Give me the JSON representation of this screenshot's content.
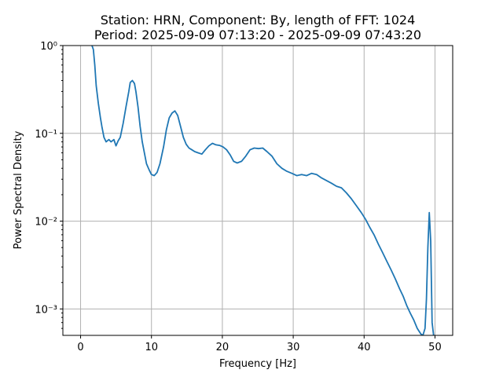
{
  "chart_data": {
    "type": "line",
    "title": "Station: HRN, Component: By, length of FFT: 1024",
    "subtitle": "Period: 2025-09-09 07:13:20 - 2025-09-09 07:43:20",
    "xlabel": "Frequency [Hz]",
    "ylabel": "Power Spectral Density",
    "xlim": [
      -2.5,
      52.5
    ],
    "ylim": [
      0.0005,
      1
    ],
    "yscale": "log",
    "grid": true,
    "x_ticks": [
      0,
      10,
      20,
      30,
      40,
      50
    ],
    "x_tick_labels": [
      "0",
      "10",
      "20",
      "30",
      "40",
      "50"
    ],
    "y_ticks": [
      0.001,
      0.01,
      0.1,
      1
    ],
    "y_tick_labels": [
      "10⁻³",
      "10⁻²",
      "10⁻¹",
      "10⁰"
    ],
    "color": "#1f77b4",
    "series": [
      {
        "x": [
          1.6,
          1.8,
          2.0,
          2.2,
          2.5,
          2.8,
          3.0,
          3.3,
          3.6,
          4.0,
          4.3,
          4.7,
          5.0,
          5.3,
          5.6,
          6.0,
          6.4,
          6.8,
          7.0,
          7.3,
          7.6,
          7.8,
          8.1,
          8.4,
          8.7,
          9.0,
          9.3,
          9.7,
          10.0,
          10.4,
          10.8,
          11.2,
          11.7,
          12.1,
          12.5,
          12.9,
          13.3,
          13.7,
          14.1,
          14.5,
          14.9,
          15.3,
          15.7,
          16.1,
          16.6,
          17.1,
          17.6,
          18.1,
          18.6,
          19.1,
          19.6,
          20.1,
          20.6,
          21.1,
          21.6,
          22.1,
          22.7,
          23.3,
          23.9,
          24.5,
          25.1,
          25.7,
          26.3,
          27.0,
          27.7,
          28.4,
          29.1,
          29.8,
          30.5,
          31.2,
          31.9,
          32.6,
          33.3,
          34.0,
          34.7,
          35.4,
          36.1,
          36.8,
          37.5,
          38.2,
          38.9,
          39.6,
          40.2,
          40.8,
          41.4,
          42.0,
          42.6,
          43.2,
          43.8,
          44.4,
          45.0,
          45.5,
          46.0,
          46.5,
          47.0,
          47.5,
          48.0,
          48.3,
          48.6,
          48.8,
          49.0,
          49.2,
          49.4,
          49.6,
          49.8
        ],
        "y": [
          1.0,
          0.9,
          0.6,
          0.35,
          0.22,
          0.15,
          0.12,
          0.09,
          0.08,
          0.085,
          0.08,
          0.085,
          0.072,
          0.082,
          0.09,
          0.13,
          0.2,
          0.3,
          0.38,
          0.4,
          0.37,
          0.3,
          0.2,
          0.12,
          0.08,
          0.06,
          0.045,
          0.038,
          0.034,
          0.033,
          0.036,
          0.045,
          0.07,
          0.11,
          0.15,
          0.17,
          0.18,
          0.16,
          0.12,
          0.09,
          0.075,
          0.068,
          0.065,
          0.062,
          0.06,
          0.058,
          0.065,
          0.072,
          0.077,
          0.074,
          0.073,
          0.07,
          0.065,
          0.057,
          0.048,
          0.046,
          0.048,
          0.055,
          0.065,
          0.068,
          0.067,
          0.068,
          0.062,
          0.055,
          0.045,
          0.04,
          0.037,
          0.035,
          0.033,
          0.034,
          0.033,
          0.035,
          0.034,
          0.031,
          0.029,
          0.027,
          0.025,
          0.024,
          0.021,
          0.018,
          0.015,
          0.0125,
          0.0105,
          0.0085,
          0.007,
          0.0055,
          0.0044,
          0.0035,
          0.0028,
          0.0022,
          0.0017,
          0.0014,
          0.0011,
          0.0009,
          0.00075,
          0.0006,
          0.00052,
          0.0005,
          0.0006,
          0.0013,
          0.005,
          0.0125,
          0.006,
          0.0007,
          0.0005
        ]
      }
    ]
  }
}
